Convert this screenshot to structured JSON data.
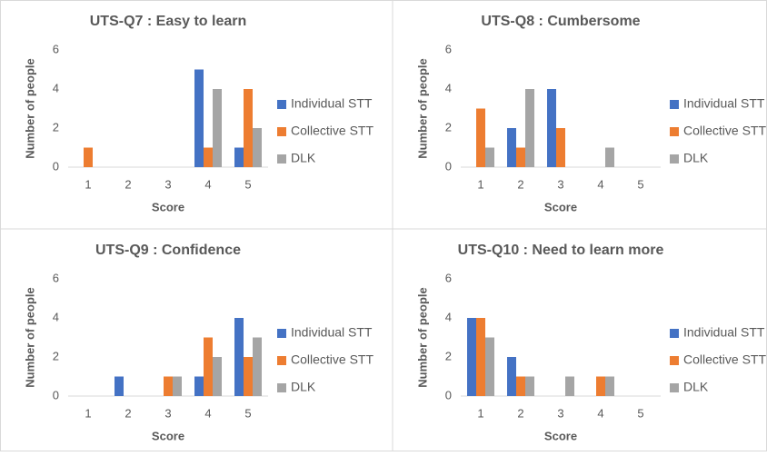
{
  "chart_data": [
    {
      "type": "bar",
      "title": "UTS-Q7 : Easy to learn",
      "x_label": "Score",
      "y_label": "Number of people",
      "categories": [
        "1",
        "2",
        "3",
        "4",
        "5"
      ],
      "series": [
        {
          "name": "Individual STT",
          "color": "#4472c4",
          "values": [
            0,
            0,
            0,
            5,
            1
          ]
        },
        {
          "name": "Collective STT",
          "color": "#ed7d31",
          "values": [
            1,
            0,
            0,
            1,
            4
          ]
        },
        {
          "name": "DLK",
          "color": "#a5a5a5",
          "values": [
            0,
            0,
            0,
            4,
            2
          ]
        }
      ],
      "ylim": [
        0,
        6
      ],
      "yticks": [
        0,
        2,
        4,
        6
      ],
      "legend": "right"
    },
    {
      "type": "bar",
      "title": "UTS-Q8 : Cumbersome",
      "x_label": "Score",
      "y_label": "Number of people",
      "categories": [
        "1",
        "2",
        "3",
        "4",
        "5"
      ],
      "series": [
        {
          "name": "Individual STT",
          "color": "#4472c4",
          "values": [
            0,
            2,
            4,
            0,
            0
          ]
        },
        {
          "name": "Collective STT",
          "color": "#ed7d31",
          "values": [
            3,
            1,
            2,
            0,
            0
          ]
        },
        {
          "name": "DLK",
          "color": "#a5a5a5",
          "values": [
            1,
            4,
            0,
            1,
            0
          ]
        }
      ],
      "ylim": [
        0,
        6
      ],
      "yticks": [
        0,
        2,
        4,
        6
      ],
      "legend": "right"
    },
    {
      "type": "bar",
      "title": "UTS-Q9 : Confidence",
      "x_label": "Score",
      "y_label": "Number of people",
      "categories": [
        "1",
        "2",
        "3",
        "4",
        "5"
      ],
      "series": [
        {
          "name": "Individual STT",
          "color": "#4472c4",
          "values": [
            0,
            1,
            0,
            1,
            4
          ]
        },
        {
          "name": "Collective STT",
          "color": "#ed7d31",
          "values": [
            0,
            0,
            1,
            3,
            2
          ]
        },
        {
          "name": "DLK",
          "color": "#a5a5a5",
          "values": [
            0,
            0,
            1,
            2,
            3
          ]
        }
      ],
      "ylim": [
        0,
        6
      ],
      "yticks": [
        0,
        2,
        4,
        6
      ],
      "legend": "right"
    },
    {
      "type": "bar",
      "title": "UTS-Q10 : Need to learn more",
      "x_label": "Score",
      "y_label": "Number of people",
      "categories": [
        "1",
        "2",
        "3",
        "4",
        "5"
      ],
      "series": [
        {
          "name": "Individual STT",
          "color": "#4472c4",
          "values": [
            4,
            2,
            0,
            0,
            0
          ]
        },
        {
          "name": "Collective STT",
          "color": "#ed7d31",
          "values": [
            4,
            1,
            0,
            1,
            0
          ]
        },
        {
          "name": "DLK",
          "color": "#a5a5a5",
          "values": [
            3,
            1,
            1,
            1,
            0
          ]
        }
      ],
      "ylim": [
        0,
        6
      ],
      "yticks": [
        0,
        2,
        4,
        6
      ],
      "legend": "right"
    }
  ]
}
